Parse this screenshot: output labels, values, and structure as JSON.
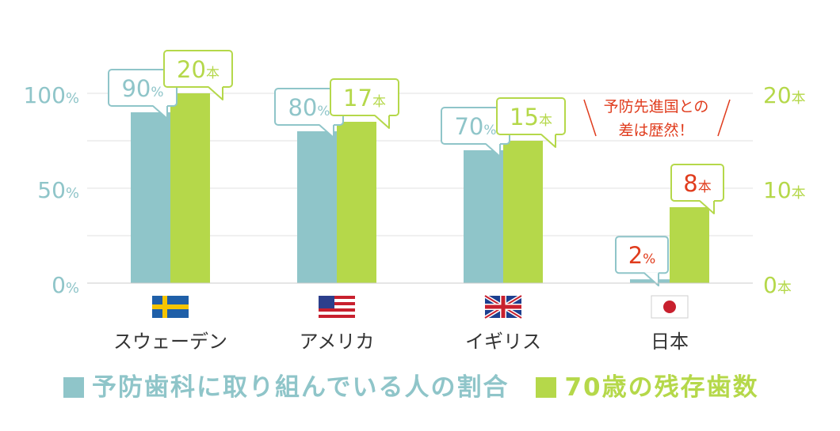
{
  "chart_data": {
    "type": "bar",
    "categories": [
      "スウェーデン",
      "アメリカ",
      "イギリス",
      "日本"
    ],
    "series": [
      {
        "name": "予防歯科に取り組んでいる人の割合",
        "axis": "left",
        "values": [
          90,
          80,
          70,
          2
        ],
        "value_labels": [
          "90",
          "80",
          "70",
          "2"
        ],
        "unit_label": "%",
        "color": "#8fc5c9"
      },
      {
        "name": "70歳の残存歯数",
        "axis": "right",
        "values": [
          20,
          17,
          15,
          8
        ],
        "value_labels": [
          "20",
          "17",
          "15",
          "8"
        ],
        "unit_label": "本",
        "color": "#b5d84a"
      }
    ],
    "y_left": {
      "ticks": [
        0,
        50,
        100
      ],
      "tick_labels": [
        "0",
        "50",
        "100"
      ],
      "unit": "%",
      "lim": [
        0,
        100
      ]
    },
    "y_right": {
      "ticks": [
        0,
        10,
        20
      ],
      "tick_labels": [
        "0",
        "10",
        "20"
      ],
      "unit": "本",
      "lim": [
        0,
        20
      ]
    },
    "grid": true,
    "flags": [
      "sweden-flag",
      "usa-flag",
      "uk-flag",
      "japan-flag"
    ],
    "highlight_color": "#e03c1d",
    "highlight_category": "日本",
    "annotation": {
      "lines": [
        "予防先進国との",
        "差は歴然！"
      ],
      "color": "#e03c1d"
    },
    "legend_position": "bottom"
  }
}
